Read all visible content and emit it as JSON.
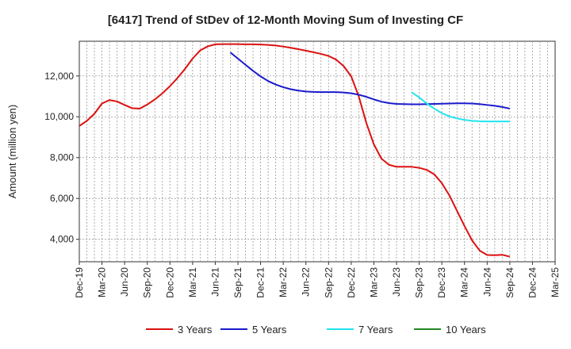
{
  "chart_data": {
    "type": "line",
    "title": "[6417]  Trend of StDev of 12-Month Moving Sum of Investing CF",
    "xlabel": "",
    "ylabel": "Amount (million yen)",
    "ylim": [
      2900,
      13700
    ],
    "yticks": [
      4000,
      6000,
      8000,
      10000,
      12000
    ],
    "ytick_labels": [
      "4,000",
      "6,000",
      "8,000",
      "10,000",
      "12,000"
    ],
    "xtick_labels": [
      "Dec-19",
      "Mar-20",
      "Jun-20",
      "Sep-20",
      "Dec-20",
      "Mar-21",
      "Jun-21",
      "Sep-21",
      "Dec-21",
      "Mar-22",
      "Jun-22",
      "Sep-22",
      "Dec-22",
      "Mar-23",
      "Jun-23",
      "Sep-23",
      "Dec-23",
      "Mar-24",
      "Jun-24",
      "Sep-24",
      "Dec-24",
      "Mar-25"
    ],
    "x_period_unit": "month",
    "x_start": "Dec-19",
    "x_end": "Mar-25",
    "grid": true,
    "legend_position": "bottom",
    "series": [
      {
        "name": "3 Years",
        "color": "#dd1111",
        "x": [
          "Dec-19",
          "Jan-20",
          "Feb-20",
          "Mar-20",
          "Apr-20",
          "May-20",
          "Jun-20",
          "Jul-20",
          "Aug-20",
          "Sep-20",
          "Oct-20",
          "Nov-20",
          "Dec-20",
          "Jan-21",
          "Feb-21",
          "Mar-21",
          "Apr-21",
          "May-21",
          "Jun-21",
          "Jul-21",
          "Aug-21",
          "Sep-21",
          "Oct-21",
          "Nov-21",
          "Dec-21",
          "Jan-22",
          "Feb-22",
          "Mar-22",
          "Apr-22",
          "May-22",
          "Jun-22",
          "Jul-22",
          "Aug-22",
          "Sep-22",
          "Oct-22",
          "Nov-22",
          "Dec-22",
          "Jan-23",
          "Feb-23",
          "Mar-23",
          "Apr-23",
          "May-23",
          "Jun-23",
          "Jul-23",
          "Aug-23",
          "Sep-23",
          "Oct-23",
          "Nov-23",
          "Dec-23",
          "Jan-24",
          "Feb-24",
          "Mar-24",
          "Apr-24",
          "May-24",
          "Jun-24",
          "Jul-24",
          "Aug-24",
          "Sep-24"
        ],
        "values": [
          9550,
          9800,
          10150,
          10650,
          10820,
          10750,
          10580,
          10420,
          10400,
          10600,
          10850,
          11150,
          11500,
          11900,
          12350,
          12850,
          13250,
          13450,
          13550,
          13560,
          13560,
          13560,
          13550,
          13550,
          13540,
          13520,
          13490,
          13440,
          13380,
          13310,
          13240,
          13160,
          13080,
          12980,
          12800,
          12480,
          11980,
          11000,
          9700,
          8650,
          7950,
          7650,
          7550,
          7550,
          7550,
          7500,
          7400,
          7180,
          6750,
          6150,
          5400,
          4650,
          3950,
          3450,
          3230,
          3220,
          3240,
          3150
        ]
      },
      {
        "name": "5 Years",
        "color": "#1a1acc",
        "x": [
          "Aug-21",
          "Sep-21",
          "Oct-21",
          "Nov-21",
          "Dec-21",
          "Jan-22",
          "Feb-22",
          "Mar-22",
          "Apr-22",
          "May-22",
          "Jun-22",
          "Jul-22",
          "Aug-22",
          "Sep-22",
          "Oct-22",
          "Nov-22",
          "Dec-22",
          "Jan-23",
          "Feb-23",
          "Mar-23",
          "Apr-23",
          "May-23",
          "Jun-23",
          "Jul-23",
          "Aug-23",
          "Sep-23",
          "Oct-23",
          "Nov-23",
          "Dec-23",
          "Jan-24",
          "Feb-24",
          "Mar-24",
          "Apr-24",
          "May-24",
          "Jun-24",
          "Jul-24",
          "Aug-24",
          "Sep-24"
        ],
        "values": [
          13150,
          12850,
          12550,
          12250,
          11980,
          11750,
          11580,
          11450,
          11350,
          11280,
          11240,
          11220,
          11210,
          11210,
          11210,
          11190,
          11150,
          11080,
          10980,
          10850,
          10740,
          10670,
          10630,
          10620,
          10610,
          10610,
          10620,
          10630,
          10640,
          10650,
          10660,
          10660,
          10650,
          10620,
          10580,
          10540,
          10480,
          10400
        ]
      },
      {
        "name": "7 Years",
        "color": "#22e5ee",
        "x": [
          "Aug-23",
          "Sep-23",
          "Oct-23",
          "Nov-23",
          "Dec-23",
          "Jan-24",
          "Feb-24",
          "Mar-24",
          "Apr-24",
          "May-24",
          "Jun-24",
          "Jul-24",
          "Aug-24",
          "Sep-24"
        ],
        "values": [
          11200,
          10950,
          10650,
          10400,
          10180,
          10020,
          9920,
          9850,
          9800,
          9780,
          9770,
          9770,
          9770,
          9770
        ]
      },
      {
        "name": "10 Years",
        "color": "#228822",
        "x": [],
        "values": []
      }
    ]
  }
}
